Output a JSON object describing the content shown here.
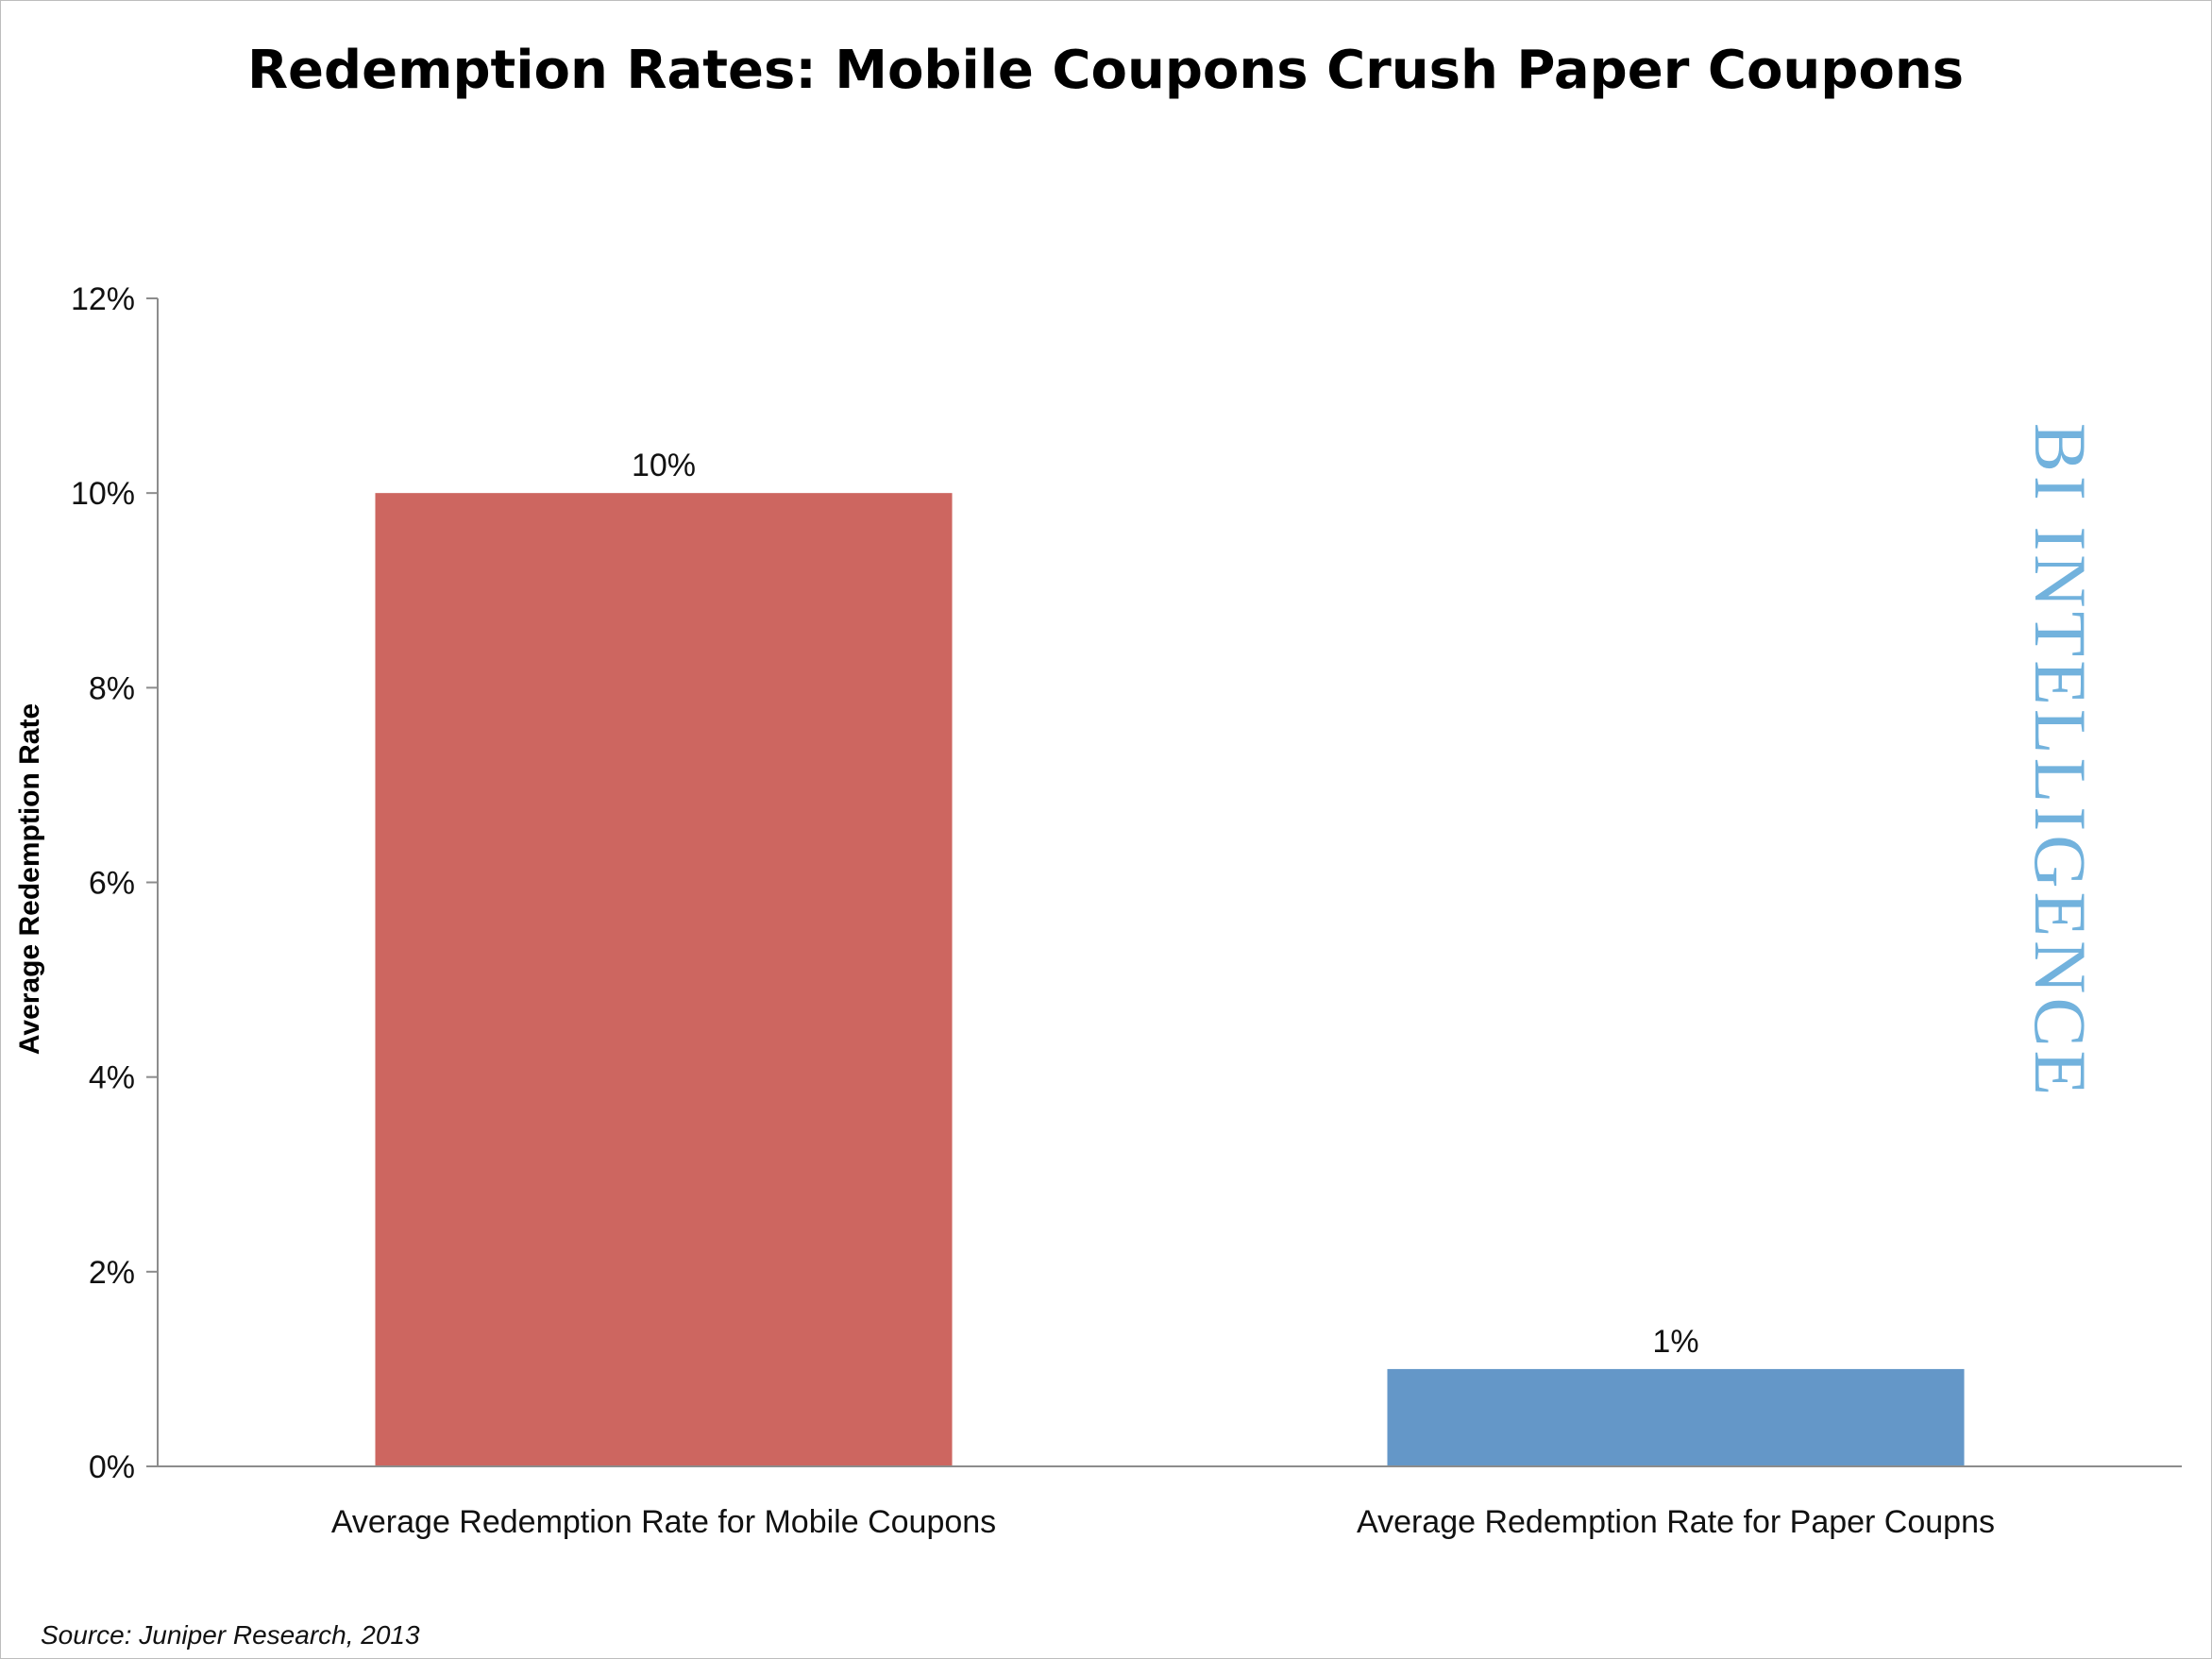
{
  "chart_data": {
    "type": "bar",
    "title": "Redemption Rates: Mobile Coupons Crush Paper Coupons",
    "ylabel": "Average Redemption Rate",
    "xlabel": "",
    "categories": [
      "Average Redemption Rate for Mobile Coupons",
      "Average Redemption Rate for Paper Coupns"
    ],
    "values": [
      10,
      1
    ],
    "data_labels": [
      "10%",
      "1%"
    ],
    "bar_colors": [
      "#cd6660",
      "#6497c8"
    ],
    "ylim": [
      0,
      12
    ],
    "yticks": [
      0,
      2,
      4,
      6,
      8,
      10,
      12
    ],
    "ytick_labels": [
      "0%",
      "2%",
      "4%",
      "6%",
      "8%",
      "10%",
      "12%"
    ],
    "grid": false,
    "legend": "none"
  },
  "watermark": {
    "text": "BI INTELLIGENCE",
    "color": "#72b2dd"
  },
  "source": "Source: Juniper Research, 2013"
}
